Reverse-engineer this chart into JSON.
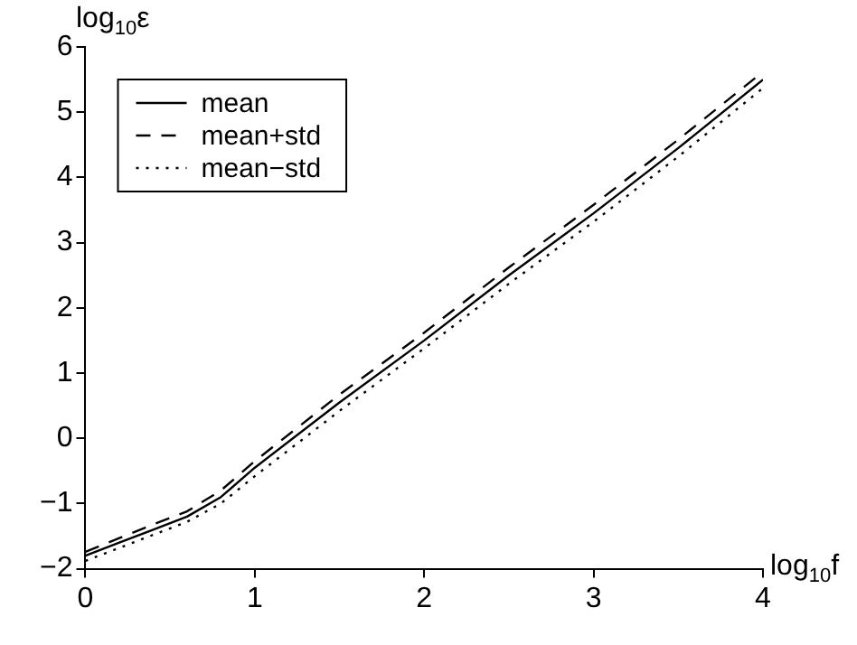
{
  "chart_data": {
    "type": "line",
    "xlabel": "log$_{10}$f",
    "ylabel": "log$_{10}$ε",
    "x": [
      0,
      0.2,
      0.4,
      0.6,
      0.8,
      1,
      1.5,
      2,
      2.5,
      3,
      3.5,
      4
    ],
    "series": [
      {
        "name": "mean",
        "color": "#000000",
        "line_style": "solid",
        "values": [
          -1.8,
          -1.6,
          -1.4,
          -1.2,
          -0.9,
          -0.45,
          0.55,
          1.5,
          2.5,
          3.45,
          4.45,
          5.5
        ]
      },
      {
        "name": "mean+std",
        "color": "#000000",
        "line_style": "dashed",
        "values": [
          -1.74,
          -1.53,
          -1.32,
          -1.12,
          -0.8,
          -0.35,
          0.67,
          1.62,
          2.62,
          3.58,
          4.58,
          5.62
        ]
      },
      {
        "name": "mean−std",
        "color": "#000000",
        "line_style": "dotted",
        "values": [
          -1.88,
          -1.68,
          -1.48,
          -1.28,
          -1,
          -0.58,
          0.42,
          1.38,
          2.37,
          3.32,
          4.32,
          5.37
        ]
      }
    ],
    "xlim": [
      0,
      4
    ],
    "xticks": [
      0,
      1,
      2,
      3,
      4
    ],
    "ylim": [
      -2,
      6
    ],
    "yticks": [
      -2,
      -1,
      0,
      1,
      2,
      3,
      4,
      5,
      6
    ],
    "grid": false,
    "legend": "top left",
    "marker": "none"
  }
}
